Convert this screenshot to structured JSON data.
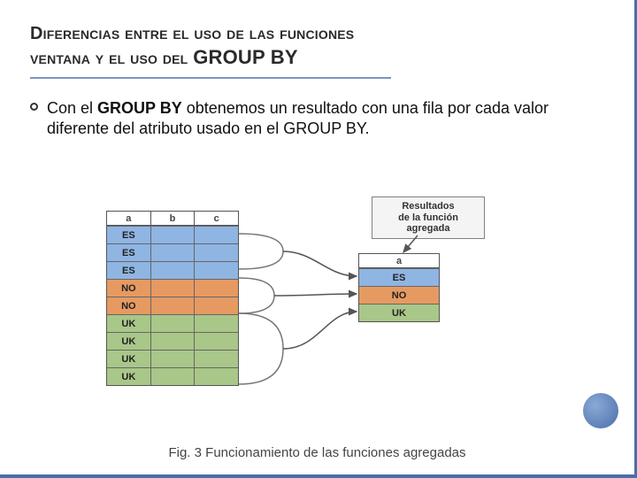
{
  "title": {
    "line1": "Diferencias entre el uso de las funciones",
    "line2_prefix": "ventana y el uso del",
    "groupby": "GROUP BY"
  },
  "bullet": {
    "pre": "Con el ",
    "strong": "GROUP BY",
    "post": " obtenemos un resultado con una fila por cada valor diferente del atributo usado en el GROUP BY."
  },
  "diagram": {
    "type": "infographic",
    "callout": {
      "l1": "Resultados",
      "l2": "de la función",
      "l3": "agregada"
    },
    "colors": {
      "ES": "#8fb5e3",
      "NO": "#e69a62",
      "UK": "#a9c789",
      "emptyBlue": "#8fb5e3",
      "emptyPeach": "#e69a62",
      "emptyGreen": "#a9c789",
      "header": "#ffffff"
    },
    "input": {
      "headers": [
        "a",
        "b",
        "c"
      ],
      "rows": [
        {
          "a": "ES",
          "color": "ES"
        },
        {
          "a": "ES",
          "color": "ES"
        },
        {
          "a": "ES",
          "color": "ES"
        },
        {
          "a": "NO",
          "color": "NO"
        },
        {
          "a": "NO",
          "color": "NO"
        },
        {
          "a": "UK",
          "color": "UK"
        },
        {
          "a": "UK",
          "color": "UK"
        },
        {
          "a": "UK",
          "color": "UK"
        },
        {
          "a": "UK",
          "color": "UK"
        }
      ]
    },
    "output": {
      "header": "a",
      "rows": [
        {
          "a": "ES",
          "color": "ES"
        },
        {
          "a": "NO",
          "color": "NO"
        },
        {
          "a": "UK",
          "color": "UK"
        }
      ]
    }
  },
  "caption": "Fig. 3 Funcionamiento de las funciones agregadas"
}
